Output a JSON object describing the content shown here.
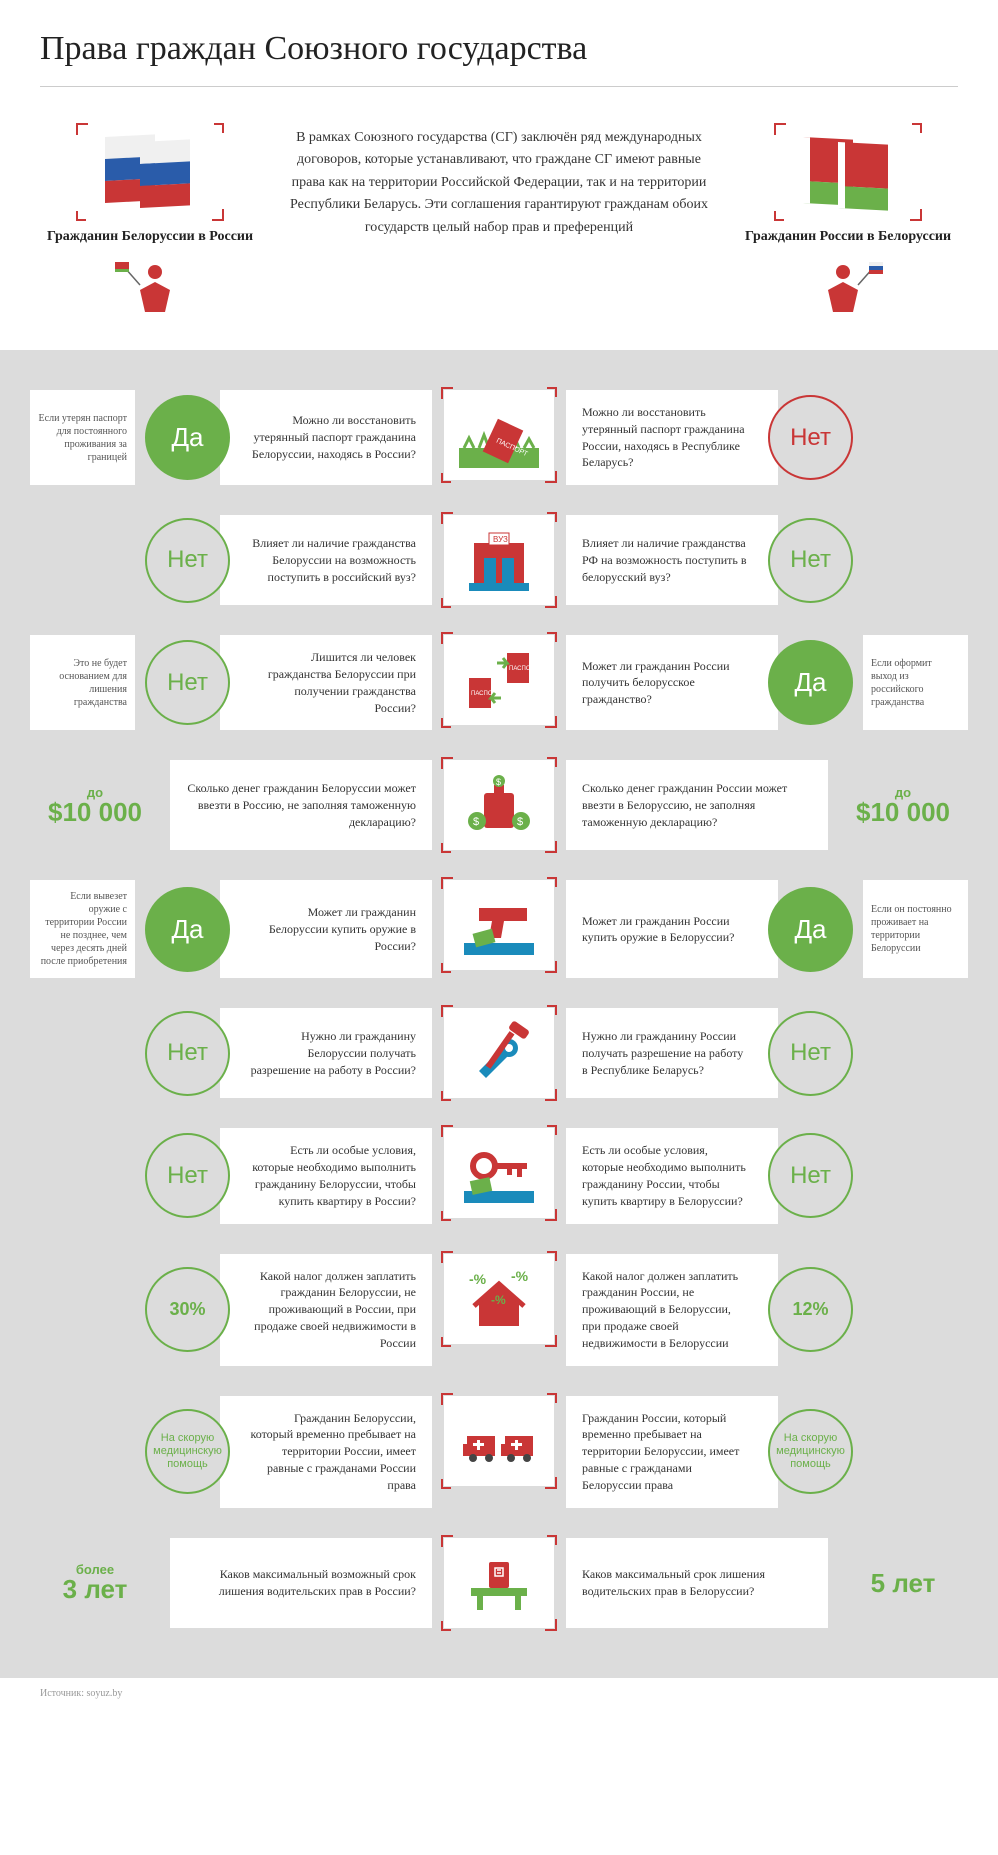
{
  "title": "Права граждан Союзного государства",
  "intro": {
    "left_label": "Гражданин Белоруссии в России",
    "right_label": "Гражданин России в Белоруссии",
    "center_text": "В рамках Союзного государства (СГ) заключён ряд международных договоров, которые устанавливают, что граждане СГ имеют равные права как на территории Российской Федерации, так и на территории Республики Беларусь. Эти соглашения гарантируют гражданам обоих государств целый набор прав и преференций"
  },
  "colors": {
    "green": "#6bb04a",
    "red": "#c93636",
    "grey_bg": "#dcdcdc",
    "text": "#333333"
  },
  "rows": [
    {
      "icon": "passport-grass",
      "left": {
        "badge_type": "yes",
        "badge_text": "Да",
        "note": "Если утерян паспорт для постоянного проживания за границей",
        "question": "Можно ли восстановить утерянный паспорт гражданина Белоруссии, находясь в России?"
      },
      "right": {
        "badge_type": "no-red",
        "badge_text": "Нет",
        "note": "",
        "question": "Можно ли восстановить утерянный паспорт гражданина России, находясь в Республике Беларусь?"
      }
    },
    {
      "icon": "university",
      "left": {
        "badge_type": "no",
        "badge_text": "Нет",
        "note": "",
        "question": "Влияет ли наличие гражданства Белоруссии на возможность поступить в российский вуз?"
      },
      "right": {
        "badge_type": "no",
        "badge_text": "Нет",
        "note": "",
        "question": "Влияет ли наличие гражданства РФ на возможность поступить в белорусский вуз?"
      }
    },
    {
      "icon": "passport-swap",
      "left": {
        "badge_type": "no",
        "badge_text": "Нет",
        "note": "Это не будет основанием для лишения гражданства",
        "question": "Лишится ли человек гражданства Белоруссии при получении гражданства России?"
      },
      "right": {
        "badge_type": "yes",
        "badge_text": "Да",
        "note": "Если оформит выход из российского гражданства",
        "question": "Может ли гражданин России получить белорусское гражданство?"
      }
    },
    {
      "icon": "money-bag",
      "left": {
        "value_small": "до",
        "value_big": "$10 000",
        "question": "Сколько денег гражданин Белоруссии может ввезти в Россию, не заполняя таможенную декларацию?"
      },
      "right": {
        "value_small": "до",
        "value_big": "$10 000",
        "question": "Сколько денег гражданин России может ввезти в Белоруссию, не заполняя таможенную декларацию?"
      }
    },
    {
      "icon": "gun",
      "left": {
        "badge_type": "yes",
        "badge_text": "Да",
        "note": "Если вывезет оружие с территории России не позднее, чем через десять дней после приобретения",
        "question": "Может ли гражданин Белоруссии купить оружие в России?"
      },
      "right": {
        "badge_type": "yes",
        "badge_text": "Да",
        "note": "Если он постоянно проживает на территории Белоруссии",
        "question": "Может ли гражданин России купить оружие в Белоруссии?"
      }
    },
    {
      "icon": "tools",
      "left": {
        "badge_type": "no",
        "badge_text": "Нет",
        "note": "",
        "question": "Нужно ли гражданину Белоруссии получать разрешение на работу в России?"
      },
      "right": {
        "badge_type": "no",
        "badge_text": "Нет",
        "note": "",
        "question": "Нужно ли гражданину России получать разрешение на работу в Республике Беларусь?"
      }
    },
    {
      "icon": "key",
      "left": {
        "badge_type": "no",
        "badge_text": "Нет",
        "note": "",
        "question": "Есть ли особые условия, которые необходимо выполнить гражданину Белоруссии, чтобы купить квартиру в России?"
      },
      "right": {
        "badge_type": "no",
        "badge_text": "Нет",
        "note": "",
        "question": "Есть ли особые условия, которые необходимо выполнить гражданину России, чтобы купить квартиру в Белоруссии?"
      }
    },
    {
      "icon": "house-percent",
      "left": {
        "badge_type": "big",
        "badge_text": "30%",
        "note": "",
        "question": "Какой налог должен заплатить гражданин Белоруссии, не проживающий в России, при продаже своей недвижимости в России"
      },
      "right": {
        "badge_type": "big",
        "badge_text": "12%",
        "note": "",
        "question": "Какой налог должен заплатить гражданин России, не проживающий в Белоруссии, при продаже своей недвижимости в Белоруссии"
      }
    },
    {
      "icon": "ambulance",
      "left": {
        "badge_type": "text",
        "badge_text": "На скорую медицинскую помощь",
        "note": "",
        "question": "Гражданин Белоруссии, который временно пребывает на территории России, имеет равные с гражданами России права"
      },
      "right": {
        "badge_type": "text",
        "badge_text": "На скорую медицинскую помощь",
        "note": "",
        "question": "Гражданин России, который временно пребывает на территории Белоруссии, имеет равные с гражданами Белоруссии права"
      }
    },
    {
      "icon": "license",
      "left": {
        "value_small": "более",
        "value_big": "3 лет",
        "question": "Каков максимальный возможный срок лишения водительских прав в России?"
      },
      "right": {
        "value_small": "",
        "value_big": "5 лет",
        "question": "Каков максимальный срок лишения водительских прав в Белоруссии?"
      }
    }
  ],
  "source": "Источник: soyuz.by"
}
